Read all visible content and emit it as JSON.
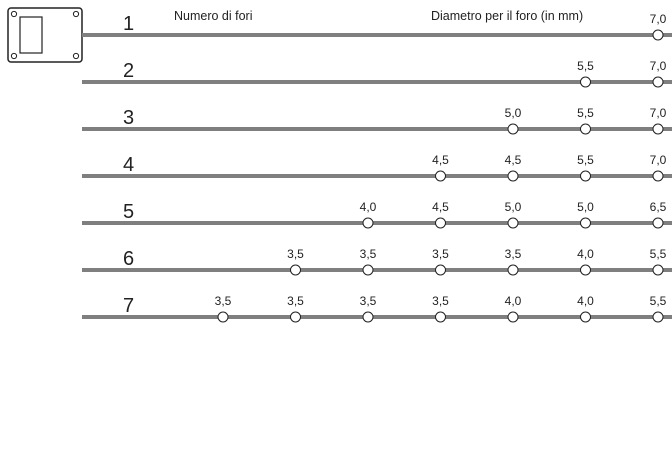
{
  "header": {
    "holes_label": "Numero di fori",
    "diameter_label": "Diametro per il foro (in mm)"
  },
  "colors": {
    "bar": "#7f7f7f",
    "text": "#222222",
    "hole_fill": "#ffffff",
    "hole_stroke": "#222222"
  },
  "rows": [
    {
      "number": "1",
      "diameters": [
        "7,0"
      ]
    },
    {
      "number": "2",
      "diameters": [
        "5,5",
        "7,0"
      ]
    },
    {
      "number": "3",
      "diameters": [
        "5,0",
        "5,5",
        "7,0"
      ]
    },
    {
      "number": "4",
      "diameters": [
        "4,5",
        "4,5",
        "5,5",
        "7,0"
      ]
    },
    {
      "number": "5",
      "diameters": [
        "4,0",
        "4,5",
        "5,0",
        "5,0",
        "6,5"
      ]
    },
    {
      "number": "6",
      "diameters": [
        "3,5",
        "3,5",
        "3,5",
        "3,5",
        "4,0",
        "5,5"
      ]
    },
    {
      "number": "7",
      "diameters": [
        "3,5",
        "3,5",
        "3,5",
        "3,5",
        "4,0",
        "4,0",
        "5,5"
      ]
    }
  ]
}
